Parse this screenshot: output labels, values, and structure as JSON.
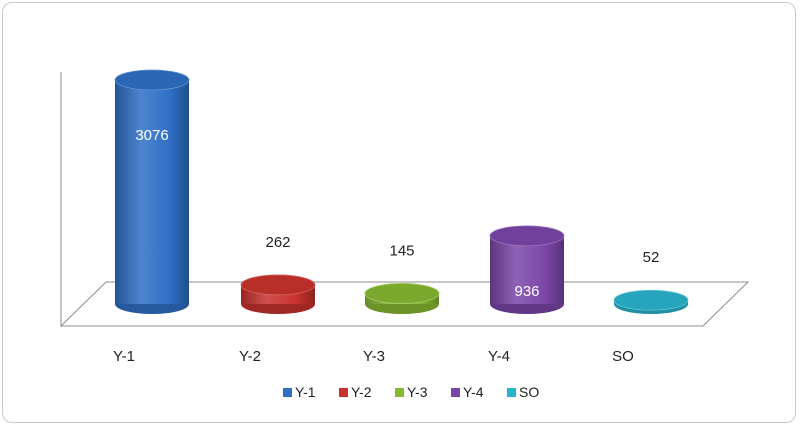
{
  "chart_data": {
    "type": "bar",
    "categories": [
      "Y-1",
      "Y-2",
      "Y-3",
      "Y-4",
      "SO"
    ],
    "values": [
      3076,
      262,
      145,
      936,
      52
    ],
    "data_labels": [
      "3076",
      "262",
      "145",
      "936",
      "52"
    ],
    "legend": {
      "placement": "bottom",
      "entries": [
        "Y-1",
        "Y-2",
        "Y-3",
        "Y-4",
        "SO"
      ]
    },
    "colors": [
      "#2f6fc5",
      "#c8322d",
      "#86b832",
      "#7a46a8",
      "#2ab3cc"
    ],
    "ylim": [
      0,
      3300
    ],
    "grid": false
  }
}
